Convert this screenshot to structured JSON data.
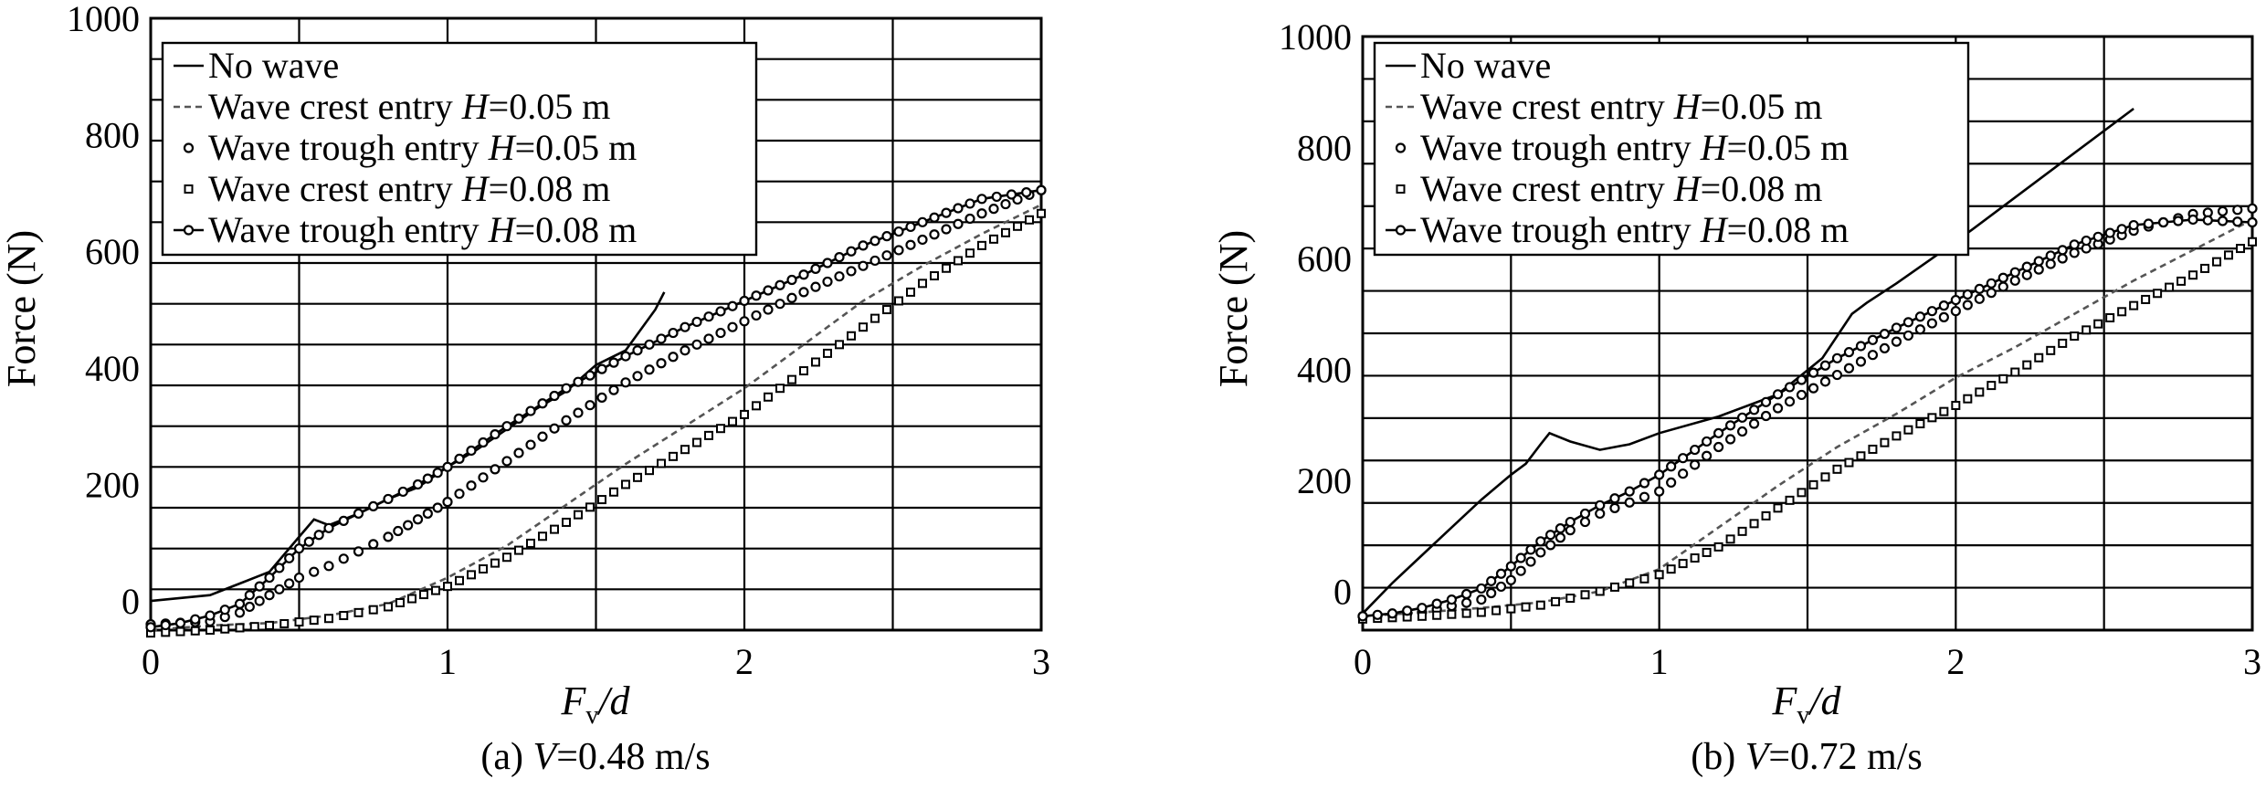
{
  "chart_data": [
    {
      "id": "a",
      "type": "line",
      "caption": {
        "prefix": "(a) ",
        "var": "V",
        "rest": "=0.48 m/s"
      },
      "xlabel": {
        "main": "F",
        "sub": "v",
        "rest": "/d"
      },
      "ylabel": "Force (N)",
      "xlim": [
        0,
        3
      ],
      "ylim": [
        -50,
        1000
      ],
      "xticks": [
        0,
        1,
        2,
        3
      ],
      "xtick_labels": [
        "0",
        "1",
        "2",
        "3"
      ],
      "yticks": [
        0,
        200,
        400,
        600,
        800,
        1000
      ],
      "ytick_labels": [
        "0",
        "200",
        "400",
        "600",
        "800",
        "1000"
      ],
      "grid": true,
      "legend_position": "top-left",
      "legend": [
        {
          "prefix": "No wave",
          "var": "",
          "rest": ""
        },
        {
          "prefix": "Wave crest entry ",
          "var": "H",
          "rest": "=0.05 m"
        },
        {
          "prefix": "Wave trough entry ",
          "var": "H",
          "rest": "=0.05 m"
        },
        {
          "prefix": "Wave crest entry ",
          "var": "H",
          "rest": "=0.08 m"
        },
        {
          "prefix": "Wave trough entry ",
          "var": "H",
          "rest": "=0.08 m"
        }
      ],
      "series": [
        {
          "style": "solid",
          "x": [
            0,
            0.2,
            0.3,
            0.4,
            0.5,
            0.55,
            0.6,
            0.7,
            0.8,
            0.9,
            1.0,
            1.1,
            1.2,
            1.3,
            1.4,
            1.5,
            1.6,
            1.7,
            1.73
          ],
          "y": [
            0,
            10,
            30,
            50,
            110,
            140,
            130,
            150,
            175,
            195,
            230,
            260,
            295,
            330,
            360,
            405,
            430,
            500,
            530
          ]
        },
        {
          "style": "dash",
          "x": [
            0,
            0.2,
            0.4,
            0.6,
            0.8,
            1.0,
            1.2,
            1.4,
            1.6,
            1.8,
            2.0,
            2.2,
            2.4,
            2.6,
            2.8,
            3.0
          ],
          "y": [
            -50,
            -42,
            -38,
            -25,
            -5,
            40,
            95,
            165,
            235,
            300,
            365,
            440,
            515,
            575,
            630,
            680
          ]
        },
        {
          "style": "circle",
          "x": [
            0,
            0.2,
            0.3,
            0.4,
            0.5,
            0.6,
            0.7,
            0.8,
            0.9,
            1.0,
            1.2,
            1.4,
            1.6,
            1.8,
            2.0,
            2.2,
            2.4,
            2.6,
            2.8,
            3.0
          ],
          "y": [
            -40,
            -35,
            -20,
            10,
            40,
            60,
            85,
            110,
            140,
            170,
            240,
            310,
            375,
            430,
            480,
            530,
            575,
            620,
            665,
            705
          ]
        },
        {
          "style": "square",
          "x": [
            0,
            0.2,
            0.4,
            0.6,
            0.8,
            1.0,
            1.2,
            1.4,
            1.6,
            1.8,
            2.0,
            2.2,
            2.4,
            2.6,
            2.8,
            3.0
          ],
          "y": [
            -55,
            -50,
            -42,
            -30,
            -10,
            25,
            75,
            135,
            200,
            260,
            320,
            395,
            470,
            545,
            610,
            665
          ]
        },
        {
          "style": "circle-line",
          "x": [
            0,
            0.1,
            0.2,
            0.3,
            0.4,
            0.5,
            0.6,
            0.7,
            0.8,
            0.9,
            1.0,
            1.2,
            1.4,
            1.6,
            1.8,
            2.0,
            2.2,
            2.4,
            2.6,
            2.8,
            3.0
          ],
          "y": [
            -45,
            -38,
            -25,
            -5,
            40,
            90,
            125,
            150,
            175,
            200,
            230,
            300,
            365,
            420,
            470,
            515,
            560,
            610,
            650,
            690,
            705
          ]
        }
      ]
    },
    {
      "id": "b",
      "type": "line",
      "caption": {
        "prefix": "(b) ",
        "var": "V",
        "rest": "=0.72 m/s"
      },
      "xlabel": {
        "main": "F",
        "sub": "v",
        "rest": "/d"
      },
      "ylabel": "Force (N)",
      "xlim": [
        0,
        3
      ],
      "ylim": [
        -70,
        1000
      ],
      "xticks": [
        0,
        1,
        2,
        3
      ],
      "xtick_labels": [
        "0",
        "1",
        "2",
        "3"
      ],
      "yticks": [
        0,
        200,
        400,
        600,
        800,
        1000
      ],
      "ytick_labels": [
        "0",
        "200",
        "400",
        "600",
        "800",
        "1000"
      ],
      "grid": true,
      "legend_position": "top-left",
      "legend": [
        {
          "prefix": "No wave",
          "var": "",
          "rest": ""
        },
        {
          "prefix": "Wave crest entry ",
          "var": "H",
          "rest": "=0.05 m"
        },
        {
          "prefix": "Wave trough entry ",
          "var": "H",
          "rest": "=0.05 m"
        },
        {
          "prefix": "Wave crest entry ",
          "var": "H",
          "rest": "=0.08 m"
        },
        {
          "prefix": "Wave trough entry ",
          "var": "H",
          "rest": "=0.08 m"
        }
      ],
      "series": [
        {
          "style": "solid",
          "x": [
            0,
            0.1,
            0.2,
            0.3,
            0.4,
            0.5,
            0.55,
            0.6,
            0.63,
            0.7,
            0.8,
            0.9,
            1.0,
            1.2,
            1.4,
            1.55,
            1.65,
            1.7,
            1.8,
            2.0,
            2.2,
            2.4,
            2.6
          ],
          "y": [
            -40,
            15,
            65,
            115,
            165,
            210,
            230,
            265,
            285,
            270,
            255,
            265,
            285,
            315,
            355,
            420,
            500,
            520,
            555,
            630,
            710,
            790,
            870
          ]
        },
        {
          "style": "dash",
          "x": [
            0,
            0.2,
            0.4,
            0.6,
            0.8,
            1.0,
            1.2,
            1.4,
            1.6,
            1.8,
            2.0,
            2.2,
            2.4,
            2.6,
            2.8,
            3.0
          ],
          "y": [
            -45,
            -38,
            -30,
            -20,
            0,
            40,
            115,
            190,
            260,
            320,
            385,
            440,
            500,
            560,
            615,
            670
          ]
        },
        {
          "style": "circle",
          "x": [
            0,
            0.2,
            0.4,
            0.5,
            0.6,
            0.7,
            0.8,
            0.9,
            1.0,
            1.2,
            1.4,
            1.6,
            1.8,
            2.0,
            2.2,
            2.4,
            2.6,
            2.8,
            3.0
          ],
          "y": [
            -45,
            -38,
            -15,
            20,
            70,
            110,
            140,
            160,
            180,
            260,
            330,
            390,
            450,
            505,
            560,
            610,
            650,
            680,
            690
          ]
        },
        {
          "style": "square",
          "x": [
            0,
            0.2,
            0.4,
            0.6,
            0.8,
            1.0,
            1.2,
            1.4,
            1.6,
            1.8,
            2.0,
            2.2,
            2.4,
            2.6,
            2.8,
            3.0
          ],
          "y": [
            -50,
            -45,
            -38,
            -25,
            0,
            30,
            80,
            150,
            220,
            280,
            335,
            395,
            460,
            515,
            570,
            630
          ]
        },
        {
          "style": "circle-line",
          "x": [
            0,
            0.1,
            0.2,
            0.3,
            0.4,
            0.5,
            0.6,
            0.7,
            0.8,
            0.9,
            1.0,
            1.2,
            1.4,
            1.6,
            1.8,
            2.0,
            2.2,
            2.4,
            2.6,
            2.8,
            3.0
          ],
          "y": [
            -45,
            -40,
            -30,
            -15,
            5,
            45,
            90,
            125,
            155,
            180,
            210,
            285,
            355,
            420,
            475,
            525,
            575,
            625,
            660,
            670,
            665
          ]
        }
      ]
    }
  ]
}
